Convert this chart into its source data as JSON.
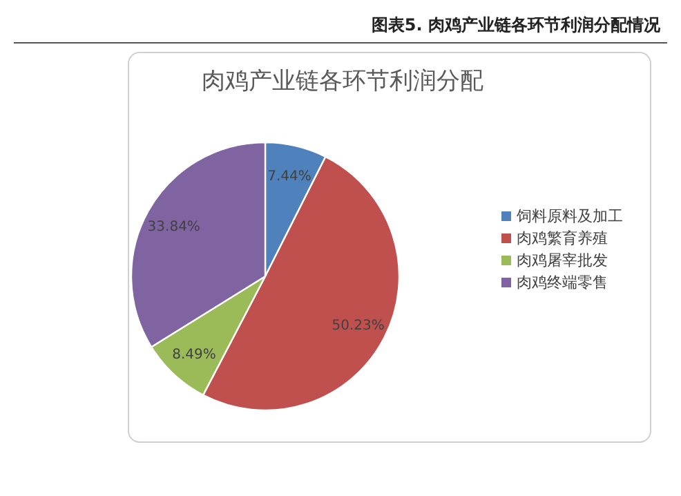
{
  "chart_data": {
    "type": "pie",
    "title": "图表5. 肉鸡产业链各环节利润分配情况",
    "subtitle": "肉鸡产业链各环节利润分配",
    "categories": [
      "饲料原料及加工",
      "肉鸡繁育养殖",
      "肉鸡屠宰批发",
      "肉鸡终端零售"
    ],
    "values": [
      7.44,
      50.23,
      8.49,
      33.84
    ],
    "colors": [
      "#4f81bd",
      "#c0504d",
      "#9bbb59",
      "#8064a2"
    ],
    "value_labels": [
      "7.44%",
      "50.23%",
      "8.49%",
      "33.84%"
    ],
    "legend": "right"
  }
}
